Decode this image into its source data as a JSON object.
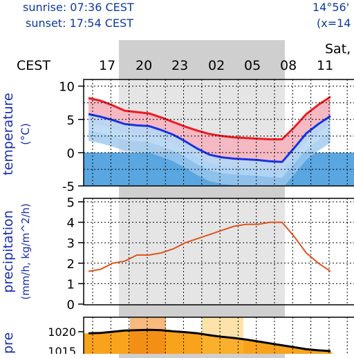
{
  "header": {
    "sunrise": "sunrise: 07:36 CEST",
    "sunset": "sunset: 17:54 CEST",
    "coord_line1": "14°56'",
    "coord_line2": "(x=14"
  },
  "timezone_label": "CEST",
  "day_label": "Sat,",
  "hours": [
    "17",
    "20",
    "23",
    "02",
    "05",
    "08",
    "11"
  ],
  "colors": {
    "night_shade": "#cfcfcf",
    "temp_high_line": "#ee1c24",
    "temp_mean_line": "#1532e8",
    "temp_band_outer": "#f4b9c3",
    "temp_band_inner": "#b8d8f6",
    "below_zero_fill": "#5aa6e0",
    "deep_cold_fill": "#9cc8ee",
    "precip_line": "#e0531d",
    "pressure_fill": "#f9a31c",
    "axis_label": "#1a2fb0"
  },
  "chart_data": [
    {
      "type": "line",
      "title": "",
      "ylabel": "temperature (°C)",
      "ylim": [
        -5,
        11
      ],
      "yticks": [
        10,
        5,
        0,
        -5
      ],
      "x": [
        "16",
        "17",
        "18",
        "19",
        "20",
        "21",
        "22",
        "23",
        "00",
        "01",
        "02",
        "03",
        "04",
        "05",
        "06",
        "07",
        "08",
        "09",
        "10",
        "11",
        "12"
      ],
      "series": [
        {
          "values": [
            8.2,
            7.8,
            7.1,
            6.3,
            6.1,
            5.9,
            5.3,
            4.6,
            3.9,
            3.3,
            2.8,
            2.5,
            2.3,
            2.2,
            2.1,
            2.0,
            2.0,
            3.8,
            5.8,
            7.2,
            8.4
          ]
        },
        {
          "values": [
            5.8,
            5.4,
            4.9,
            4.3,
            4.1,
            4.0,
            3.4,
            2.7,
            1.7,
            0.6,
            -0.3,
            -0.7,
            -0.9,
            -1.0,
            -1.1,
            -1.3,
            -1.4,
            0.7,
            2.9,
            4.3,
            5.5
          ]
        }
      ],
      "grid": true
    },
    {
      "type": "line",
      "title": "",
      "ylabel": "precipitation (mm/h, kg/m^2/h)",
      "ylim": [
        0,
        5
      ],
      "yticks": [
        5,
        4,
        3,
        2,
        1,
        0
      ],
      "x": [
        "16",
        "17",
        "18",
        "19",
        "20",
        "21",
        "22",
        "23",
        "00",
        "01",
        "02",
        "03",
        "04",
        "05",
        "06",
        "07",
        "08",
        "09",
        "10",
        "11",
        "12"
      ],
      "series": [
        {
          "values": [
            1.6,
            1.7,
            2.0,
            2.1,
            2.4,
            2.4,
            2.5,
            2.7,
            3.0,
            3.2,
            3.4,
            3.6,
            3.8,
            3.9,
            3.9,
            4.0,
            4.0,
            3.3,
            2.5,
            2.0,
            1.6
          ]
        }
      ],
      "grid": true
    },
    {
      "type": "area",
      "title": "",
      "ylabel": "pre",
      "yticks": [
        "1020",
        "1015"
      ],
      "x": [
        "16",
        "17",
        "18",
        "19",
        "20",
        "21",
        "22",
        "23",
        "00",
        "01",
        "02",
        "03",
        "04",
        "05",
        "06",
        "07",
        "08",
        "09",
        "10",
        "11",
        "12"
      ],
      "series": [
        {
          "values": [
            1019.6,
            1019.7,
            1020.0,
            1020.3,
            1020.4,
            1020.5,
            1020.4,
            1020.1,
            1019.9,
            1019.6,
            1019.1,
            1018.7,
            1018.4,
            1018.0,
            1017.5,
            1017.0,
            1016.5,
            1016.0,
            1015.5,
            1015.2,
            1015.0
          ]
        }
      ]
    }
  ]
}
